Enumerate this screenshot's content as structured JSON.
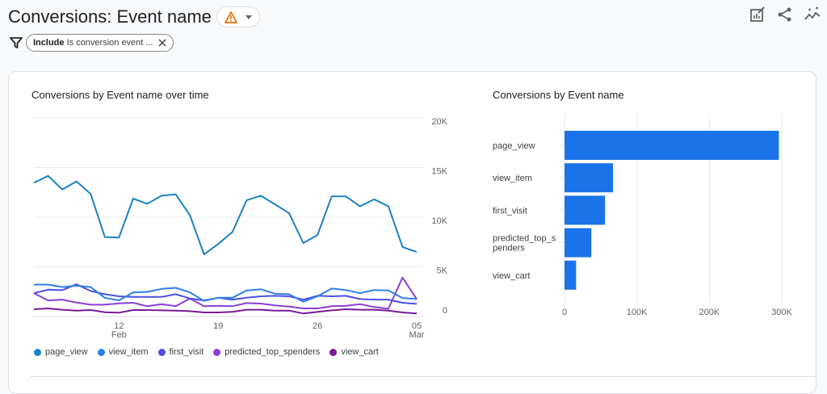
{
  "header": {
    "title": "Conversions: Event name",
    "warning_icon": "warning-triangle-icon",
    "filter": {
      "bold": "Include",
      "text": "Is conversion event ..."
    }
  },
  "toolbar": {
    "icons": [
      "edit-report-icon",
      "share-icon",
      "insights-icon"
    ]
  },
  "line_chart_title": "Conversions by Event name over time",
  "bar_chart_title": "Conversions by Event name",
  "colors": {
    "page_view": "#1b82c4",
    "view_item": "#2f7fe8",
    "first_visit": "#4b4fe4",
    "predicted_top_spenders": "#8a3fd6",
    "view_cart": "#7a1a99",
    "bar": "#1a73e8",
    "warning": "#e8710a"
  },
  "chart_data": [
    {
      "type": "line",
      "title": "Conversions by Event name over time",
      "x_start": "2023-02-06",
      "x_end": "2023-03-05",
      "x_ticks": [
        {
          "day": "12",
          "month": "Feb",
          "index": 6
        },
        {
          "day": "19",
          "month": "",
          "index": 13
        },
        {
          "day": "26",
          "month": "",
          "index": 20
        },
        {
          "day": "05",
          "month": "Mar",
          "index": 27
        }
      ],
      "y_ticks": [
        "0",
        "5K",
        "10K",
        "15K",
        "20K"
      ],
      "ylim": [
        0,
        20000
      ],
      "grid": true,
      "legend": "bottom",
      "series": [
        {
          "name": "page_view",
          "values": [
            13460,
            14160,
            12800,
            13600,
            12350,
            8000,
            7950,
            11870,
            11350,
            12160,
            12300,
            10200,
            6250,
            7300,
            8500,
            11700,
            12160,
            11300,
            10400,
            7400,
            8200,
            12100,
            12100,
            11100,
            11800,
            11100,
            7000,
            6500
          ]
        },
        {
          "name": "view_item",
          "values": [
            3210,
            3210,
            2970,
            3100,
            2970,
            1890,
            1620,
            2430,
            2480,
            2780,
            2890,
            2430,
            1570,
            1890,
            1890,
            2620,
            2750,
            2300,
            2240,
            1490,
            2030,
            2810,
            2670,
            2350,
            2670,
            2620,
            1860,
            1760
          ]
        },
        {
          "name": "first_visit",
          "values": [
            2350,
            2700,
            2650,
            3240,
            2570,
            2240,
            2030,
            1970,
            1970,
            1970,
            2240,
            1810,
            1620,
            1890,
            1700,
            1890,
            2030,
            2080,
            2030,
            1700,
            2080,
            2030,
            2080,
            1760,
            1700,
            1700,
            1380,
            1270
          ]
        },
        {
          "name": "predicted_top_spenders",
          "values": [
            2350,
            1620,
            1700,
            1400,
            1190,
            1190,
            1320,
            1380,
            1030,
            1240,
            1030,
            1810,
            1030,
            1080,
            1030,
            1350,
            1300,
            1110,
            1000,
            810,
            810,
            1030,
            1080,
            1240,
            950,
            780,
            3920,
            1760
          ]
        },
        {
          "name": "view_cart",
          "values": [
            730,
            810,
            680,
            590,
            650,
            430,
            380,
            650,
            650,
            620,
            590,
            540,
            410,
            410,
            460,
            680,
            680,
            590,
            590,
            300,
            460,
            620,
            730,
            680,
            680,
            590,
            410,
            300
          ]
        }
      ]
    },
    {
      "type": "bar",
      "orientation": "horizontal",
      "title": "Conversions by Event name",
      "categories": [
        "page_view",
        "view_item",
        "first_visit",
        "predicted_top_spenders",
        "view_cart"
      ],
      "category_labels": [
        [
          "page_view"
        ],
        [
          "view_item"
        ],
        [
          "first_visit"
        ],
        [
          "predicted_top_s",
          "penders"
        ],
        [
          "view_cart"
        ]
      ],
      "values": [
        296000,
        67000,
        56000,
        37000,
        16000
      ],
      "x_ticks": [
        "0",
        "100K",
        "200K",
        "300K"
      ],
      "xlim": [
        0,
        300000
      ],
      "grid": true
    }
  ]
}
